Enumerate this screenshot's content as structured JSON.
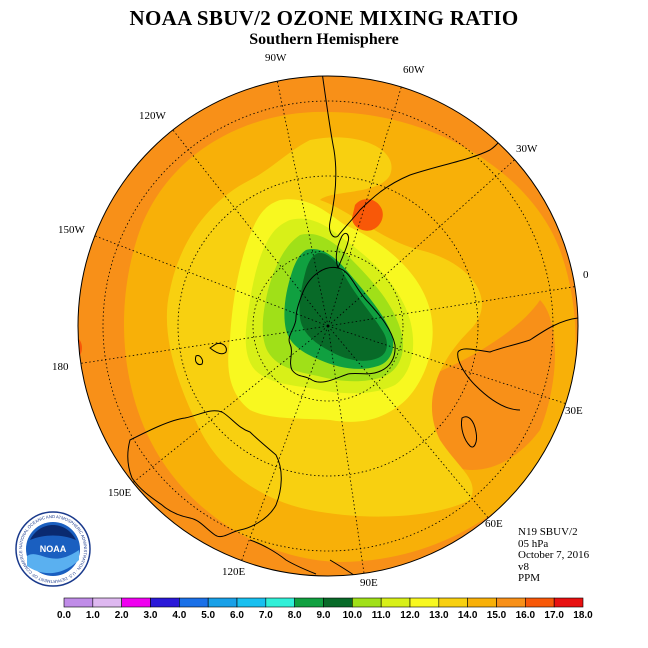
{
  "title": "NOAA SBUV/2 OZONE MIXING RATIO",
  "subtitle": "Southern Hemisphere",
  "longitude_labels": {
    "l90w": "90W",
    "l60w": "60W",
    "l30w": "30W",
    "l0": "0",
    "l30e": "30E",
    "l60e": "60E",
    "l90e": "90E",
    "l120e": "120E",
    "l150e": "150E",
    "l180": "180",
    "l150w": "150W",
    "l120w": "120W"
  },
  "info": {
    "instrument": "N19 SBUV/2",
    "level": "05 hPa",
    "date": "October 7, 2016",
    "version": "v8",
    "units": "PPM"
  },
  "logo": {
    "text": "NOAA",
    "ring_text": "NATIONAL OCEANIC AND ATMOSPHERIC ADMINISTRATION · U.S. DEPARTMENT OF COMMERCE"
  },
  "colorbar": {
    "ticks": [
      "0.0",
      "1.0",
      "2.0",
      "3.0",
      "4.0",
      "5.0",
      "6.0",
      "7.0",
      "8.0",
      "9.0",
      "10.0",
      "11.0",
      "12.0",
      "13.0",
      "14.0",
      "15.0",
      "16.0",
      "17.0",
      "18.0"
    ],
    "colors": [
      "#c08ce8",
      "#deb8f0",
      "#f000f0",
      "#2a18d8",
      "#1a70e8",
      "#18a0e8",
      "#18c0f0",
      "#30f0d8",
      "#10a040",
      "#086a28",
      "#a0e018",
      "#d8f018",
      "#f8f820",
      "#f8d010",
      "#f8b008",
      "#f89018",
      "#f85808",
      "#e81010",
      "#9c5c3c"
    ]
  },
  "map_colors": {
    "ocean_base": "#f8b008",
    "band_mid": "#f89018",
    "yellow_bright": "#f8f820",
    "yellow_mid": "#f8d010",
    "lime": "#d8f018",
    "green_light": "#a0e018",
    "green": "#10a040",
    "green_dark": "#086a28",
    "hotspot": "#f85808"
  }
}
